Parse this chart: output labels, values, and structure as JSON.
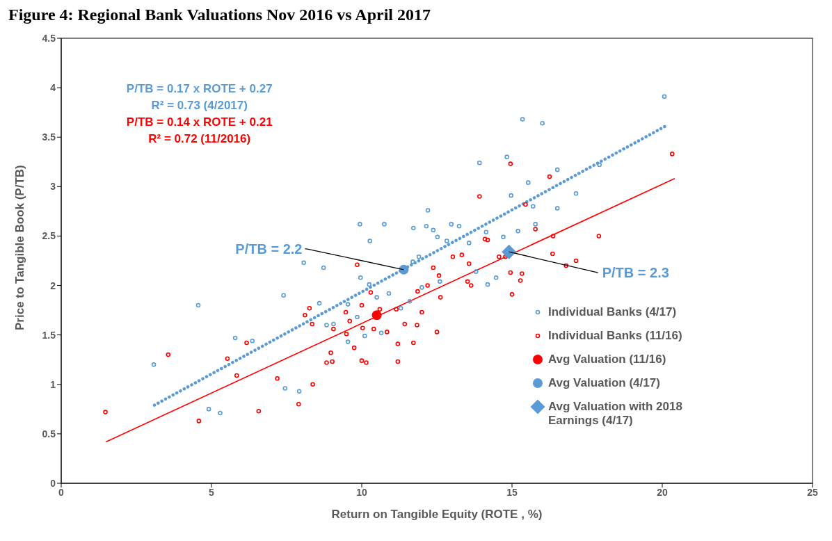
{
  "chart_data": {
    "type": "scatter",
    "title": "Figure 4: Regional Bank Valuations Nov 2016 vs April 2017",
    "xlabel": "Return on Tangible Equity (ROTE , %)",
    "ylabel": "Price to Tangible Book (P/TB)",
    "xlim": [
      0,
      25
    ],
    "xticks": [
      0,
      5,
      10,
      15,
      20,
      25
    ],
    "ylim": [
      0,
      4.5
    ],
    "yticks": [
      0,
      0.5,
      1,
      1.5,
      2,
      2.5,
      3,
      3.5,
      4,
      4.5
    ],
    "grid": false,
    "legend": "right",
    "marker": "circle",
    "annotations": [
      "P/TB = 0.17 x ROTE + 0.27",
      "R² = 0.73 (4/2017)",
      "P/TB = 0.14 x ROTE + 0.21",
      "R² = 0.72 (11/2016)",
      {
        "text": "P/TB = 2.2",
        "x": 11.4,
        "y": 2.16
      },
      {
        "text": "P/TB = 2.3",
        "x": 14.9,
        "y": 2.34
      }
    ],
    "series": [
      {
        "name": "Individual Banks (4/17)",
        "color": "#5b9bd5",
        "x": [
          3.08,
          4.56,
          4.91,
          5.29,
          5.79,
          6.36,
          7.4,
          7.45,
          7.92,
          8.07,
          8.73,
          9.94,
          10.75,
          10.27,
          9.96,
          10.5,
          10.9,
          11.72,
          12.2,
          12.38,
          12.52,
          12.83,
          12.98,
          13.57,
          13.92,
          14.14,
          14.83,
          14.97,
          15.35,
          15.54,
          16.01,
          16.51,
          16.51,
          17.13,
          17.91,
          20.07,
          15.2,
          15.78,
          15.7,
          14.71,
          14.47,
          14.19,
          10.65,
          10.1,
          9.54,
          8.83,
          8.59,
          9.54,
          10.25,
          11.7,
          11.9,
          12.0,
          12.6,
          11.6,
          11.3,
          9.06,
          9.85,
          12.15,
          13.24,
          13.8
        ],
        "values": [
          1.2,
          1.8,
          0.75,
          0.71,
          1.47,
          1.44,
          1.9,
          0.96,
          0.93,
          2.23,
          2.18,
          2.62,
          2.62,
          2.45,
          2.08,
          1.88,
          1.92,
          2.58,
          2.76,
          2.56,
          2.49,
          2.45,
          2.62,
          2.43,
          3.24,
          2.54,
          3.3,
          2.91,
          3.68,
          3.04,
          3.64,
          3.17,
          2.78,
          2.93,
          3.22,
          3.91,
          2.55,
          2.62,
          2.8,
          2.49,
          2.08,
          2.01,
          1.52,
          1.49,
          1.43,
          1.6,
          1.82,
          1.81,
          2.01,
          2.24,
          2.29,
          1.98,
          2.04,
          1.84,
          1.77,
          1.61,
          1.68,
          2.6,
          2.6,
          2.14
        ]
      },
      {
        "name": "Individual Banks (11/16)",
        "color": "#ff0000",
        "x": [
          1.47,
          3.56,
          4.58,
          5.53,
          5.84,
          6.17,
          6.57,
          7.19,
          7.9,
          8.37,
          8.11,
          8.35,
          8.26,
          8.97,
          9.02,
          8.83,
          9.49,
          9.75,
          10.0,
          10.03,
          10.0,
          9.85,
          10.3,
          10.6,
          10.84,
          11.2,
          11.2,
          11.43,
          11.84,
          12.0,
          11.86,
          12.19,
          12.38,
          12.57,
          12.62,
          13.03,
          13.33,
          13.57,
          13.52,
          13.64,
          13.92,
          14.1,
          14.19,
          14.57,
          14.95,
          15.0,
          15.28,
          15.33,
          14.78,
          14.95,
          15.45,
          15.78,
          16.25,
          16.37,
          16.35,
          16.8,
          17.13,
          17.89,
          20.33,
          10.4,
          9.6,
          10.15,
          11.15,
          9.06,
          9.47,
          12.5,
          11.72
        ],
        "values": [
          0.72,
          1.3,
          0.63,
          1.26,
          1.09,
          1.42,
          0.73,
          1.06,
          0.8,
          1.0,
          1.7,
          1.61,
          1.77,
          1.32,
          1.23,
          1.22,
          1.51,
          1.37,
          1.24,
          1.57,
          1.8,
          2.21,
          1.93,
          1.76,
          1.53,
          1.23,
          1.41,
          1.61,
          1.6,
          1.73,
          1.94,
          2.0,
          2.18,
          2.1,
          1.88,
          2.29,
          2.31,
          2.22,
          2.04,
          2.0,
          2.9,
          2.47,
          2.46,
          2.29,
          2.13,
          1.91,
          2.05,
          2.12,
          2.29,
          3.23,
          2.82,
          2.57,
          3.1,
          2.5,
          2.32,
          2.2,
          2.25,
          2.5,
          3.33,
          1.56,
          1.64,
          1.22,
          1.76,
          1.56,
          1.73,
          1.53,
          1.42
        ]
      },
      {
        "type": "line",
        "color": "#5b9bd5",
        "x": [
          3.1,
          20.1
        ],
        "values": [
          0.79,
          3.61
        ],
        "line_style": "dotted",
        "marker": "none"
      },
      {
        "type": "line",
        "color": "#ff0000",
        "x": [
          1.5,
          20.4
        ],
        "values": [
          0.42,
          3.08
        ],
        "line_style": "solid",
        "marker": "none"
      },
      {
        "name": "Avg Valuation (11/16)",
        "color": "#ff0000",
        "x": [
          10.5
        ],
        "values": [
          1.7
        ]
      },
      {
        "name": "Avg Valuation (4/17)",
        "color": "#5b9bd5",
        "x": [
          11.4
        ],
        "values": [
          2.16
        ]
      },
      {
        "name": "Avg Valuation with 2018 Earnings (4/17)",
        "color": "#5b9bd5",
        "x": [
          14.9
        ],
        "values": [
          2.34
        ],
        "marker": "diamond"
      }
    ]
  }
}
